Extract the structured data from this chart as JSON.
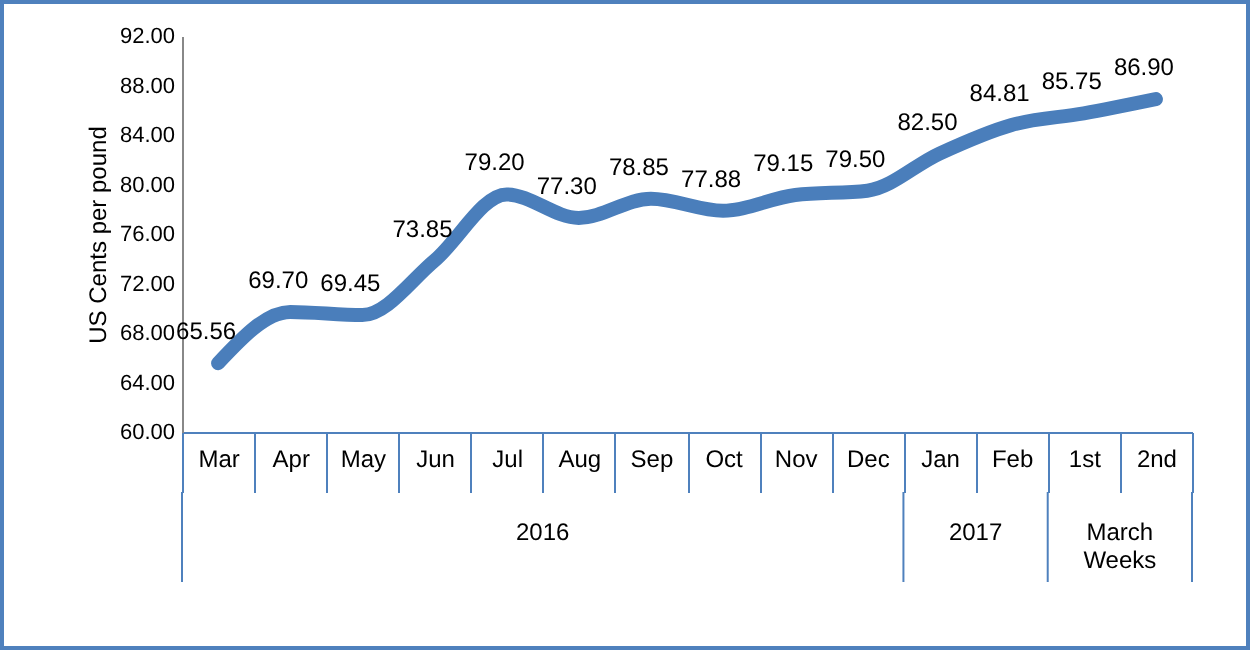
{
  "chart_data": {
    "type": "line",
    "ylabel": "US Cents per pound",
    "categories": [
      "Mar",
      "Apr",
      "May",
      "Jun",
      "Jul",
      "Aug",
      "Sep",
      "Oct",
      "Nov",
      "Dec",
      "Jan",
      "Feb",
      "1st",
      "2nd"
    ],
    "series": [
      {
        "color": "#4a7ebb",
        "values": [
          65.56,
          69.7,
          69.45,
          73.85,
          79.2,
          77.3,
          78.85,
          77.88,
          79.15,
          79.5,
          82.5,
          84.81,
          85.75,
          86.9
        ]
      }
    ],
    "value_labels": [
      "65.56",
      "69.70",
      "69.45",
      "73.85",
      "79.20",
      "77.30",
      "78.85",
      "77.88",
      "79.15",
      "79.50",
      "82.50",
      "84.81",
      "85.75",
      "86.90"
    ],
    "ylim": [
      60,
      92
    ],
    "yticks": [
      {
        "value": 60,
        "label": "60.00"
      },
      {
        "value": 64,
        "label": "64.00"
      },
      {
        "value": 68,
        "label": "68.00"
      },
      {
        "value": 72,
        "label": "72.00"
      },
      {
        "value": 76,
        "label": "76.00"
      },
      {
        "value": 80,
        "label": "80.00"
      },
      {
        "value": 84,
        "label": "84.00"
      },
      {
        "value": 88,
        "label": "88.00"
      },
      {
        "value": 92,
        "label": "92.00"
      }
    ],
    "annotations": [
      "2016",
      "2017",
      "March Weeks"
    ],
    "line_style": "solid"
  }
}
